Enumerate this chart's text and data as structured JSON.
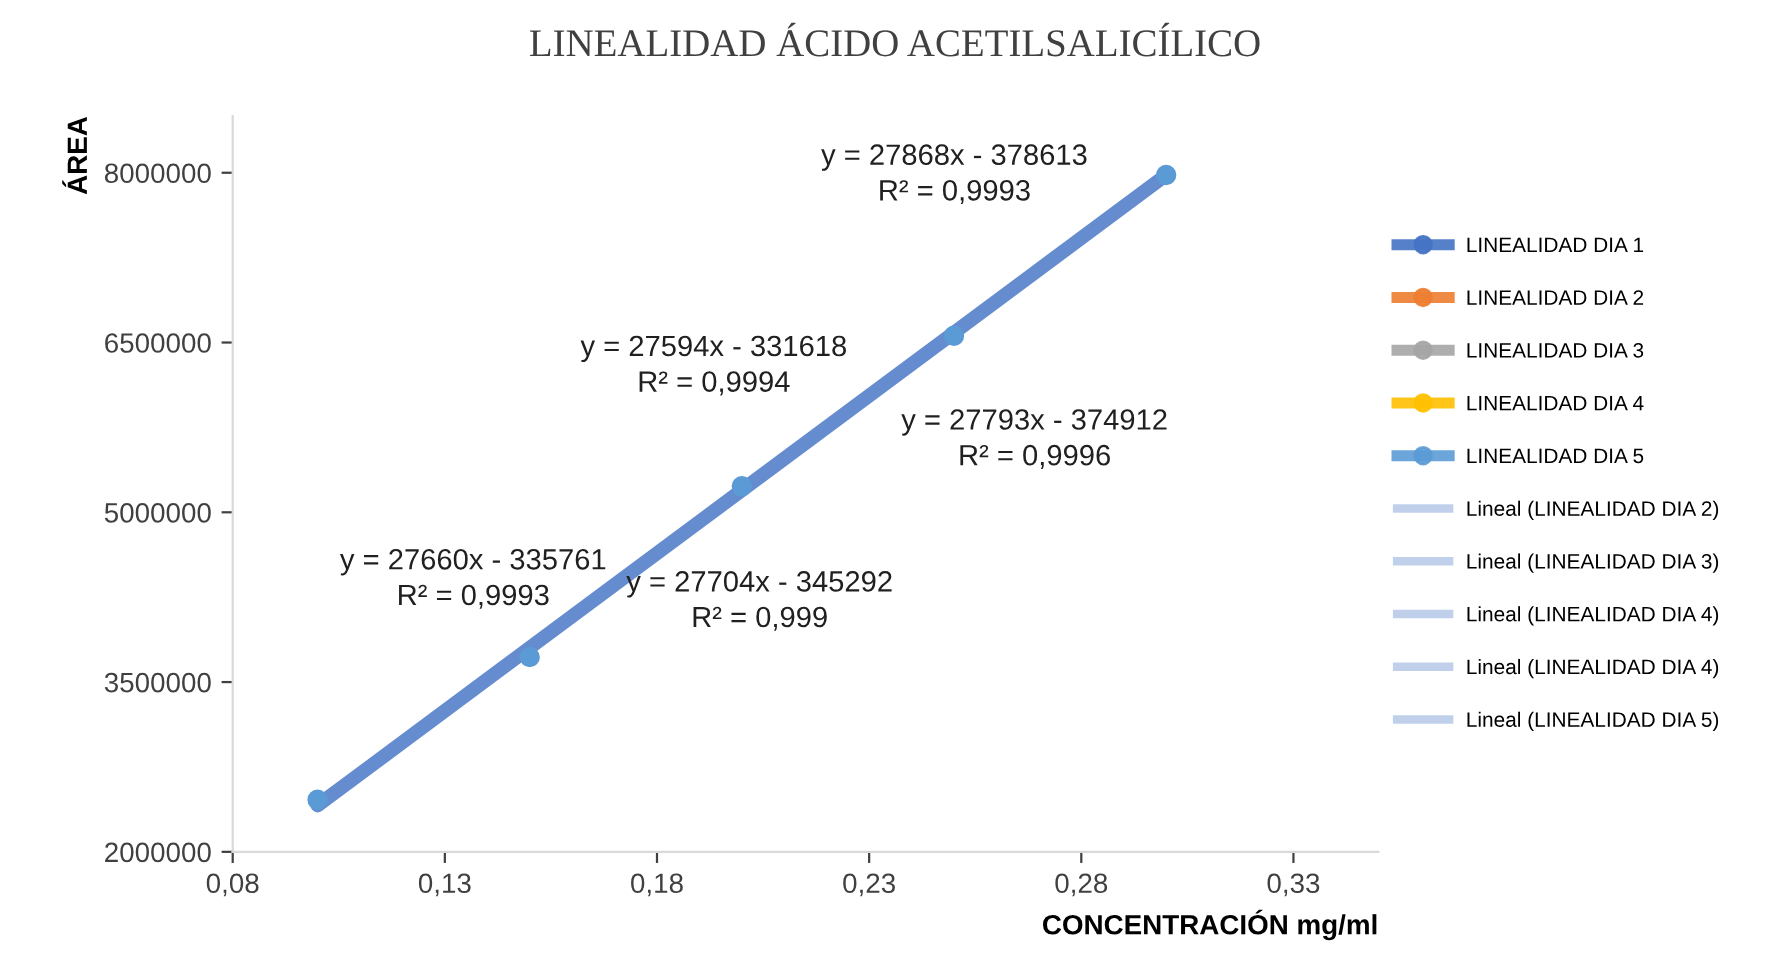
{
  "chart_data": {
    "type": "scatter",
    "title": "LINEALIDAD ÁCIDO ACETILSALICÍLICO",
    "xlabel": "CONCENTRACIÓN mg/ml",
    "ylabel": "ÁREA",
    "xlim": [
      0.08,
      0.35
    ],
    "xticks": [
      {
        "value": 0.08,
        "label": "0,08"
      },
      {
        "value": 0.13,
        "label": "0,13"
      },
      {
        "value": 0.18,
        "label": "0,18"
      },
      {
        "value": 0.23,
        "label": "0,23"
      },
      {
        "value": 0.28,
        "label": "0,28"
      },
      {
        "value": 0.33,
        "label": "0,33"
      }
    ],
    "ylim": [
      2000000,
      8500000
    ],
    "yticks": [
      2000000,
      3500000,
      5000000,
      6500000,
      8000000
    ],
    "x": [
      0.1,
      0.15,
      0.2,
      0.25,
      0.3
    ],
    "marker": "circle",
    "legend": "right",
    "grid": false,
    "series": [
      {
        "name": "LINEALIDAD DIA 1",
        "color": "#4472c4",
        "values": [
          null,
          null,
          null,
          null,
          null
        ]
      },
      {
        "name": "LINEALIDAD DIA 2",
        "color": "#ed7d31",
        "values": [
          null,
          null,
          null,
          null,
          null
        ]
      },
      {
        "name": "LINEALIDAD DIA 3",
        "color": "#a5a5a5",
        "values": [
          null,
          null,
          null,
          null,
          null
        ]
      },
      {
        "name": "LINEALIDAD DIA 4",
        "color": "#ffc000",
        "values": [
          null,
          null,
          null,
          null,
          null
        ]
      },
      {
        "name": "LINEALIDAD DIA 5",
        "color": "#5b9bd5",
        "values": [
          2460000,
          3720000,
          5230000,
          6560000,
          7980000
        ]
      },
      {
        "name": "Lineal (LINEALIDAD DIA 2)",
        "type": "line",
        "color": "#4a78c6",
        "values": [
          null,
          null,
          null,
          null,
          null
        ]
      },
      {
        "name": "Lineal (LINEALIDAD DIA 3)",
        "type": "line",
        "color": "#4a78c6",
        "values": [
          null,
          null,
          null,
          null,
          null
        ]
      },
      {
        "name": "Lineal (LINEALIDAD DIA 4)",
        "type": "line",
        "color": "#4a78c6",
        "values": [
          null,
          null,
          null,
          null,
          null
        ]
      },
      {
        "name": "Lineal (LINEALIDAD DIA 4)",
        "type": "line",
        "color": "#4a78c6",
        "values": [
          null,
          null,
          null,
          null,
          null
        ]
      },
      {
        "name": "Lineal (LINEALIDAD DIA 5)",
        "type": "line",
        "marker": "none",
        "color": "#4a78c6",
        "x": [
          0.1,
          0.3
        ],
        "values": [
          2410000,
          7980000
        ]
      }
    ],
    "annotations": [
      "y = 27868x - 378613\nR² = 0,9993",
      "y = 27594x - 331618\nR² = 0,9994",
      "y = 27793x - 374912\nR² = 0,9996",
      "y = 27660x - 335761\nR² = 0,9993",
      "y = 27704x - 345292\nR² = 0,999"
    ]
  }
}
